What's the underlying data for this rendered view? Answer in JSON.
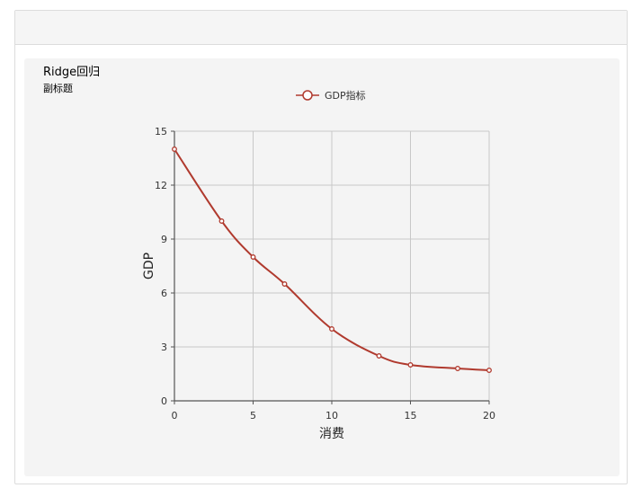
{
  "chart_data": {
    "type": "line",
    "title": "Ridge回归",
    "subtitle": "副标题",
    "xlabel": "消费",
    "ylabel": "GDP",
    "xlim": [
      0,
      20
    ],
    "ylim": [
      0,
      15
    ],
    "x_ticks": [
      "0",
      "5",
      "10",
      "15",
      "20"
    ],
    "y_ticks": [
      "0",
      "3",
      "6",
      "9",
      "12",
      "15"
    ],
    "grid": true,
    "legend_position": "top-center",
    "series": [
      {
        "name": "GDP指标",
        "color": "#b03a2e",
        "points": [
          {
            "x": 0,
            "y": 14
          },
          {
            "x": 3,
            "y": 10
          },
          {
            "x": 5,
            "y": 8
          },
          {
            "x": 7,
            "y": 6.5
          },
          {
            "x": 10,
            "y": 4
          },
          {
            "x": 13,
            "y": 2.5
          },
          {
            "x": 15,
            "y": 2
          },
          {
            "x": 18,
            "y": 1.8
          },
          {
            "x": 20,
            "y": 1.7
          }
        ]
      }
    ]
  }
}
